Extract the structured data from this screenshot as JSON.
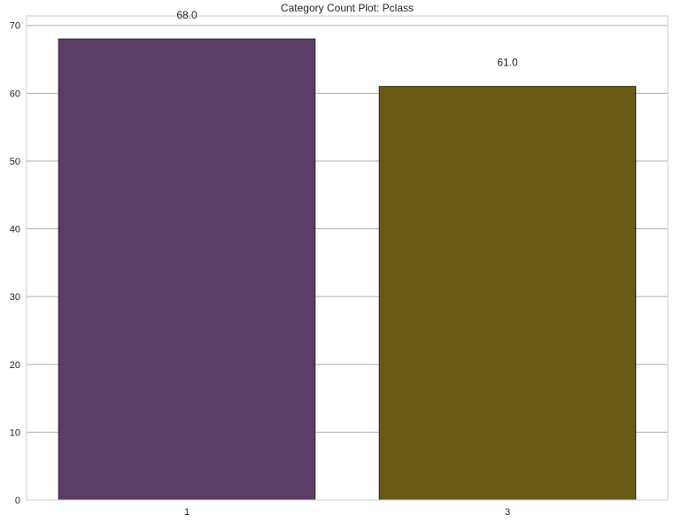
{
  "chart_data": {
    "type": "bar",
    "title": "Category Count Plot: Pclass",
    "xlabel": "",
    "ylabel": "",
    "categories": [
      "1",
      "3"
    ],
    "values": [
      68,
      61
    ],
    "data_labels": [
      "68.0",
      "61.0"
    ],
    "ylim": [
      0,
      71.4
    ],
    "yticks": [
      0,
      10,
      20,
      30,
      40,
      50,
      60,
      70
    ],
    "grid": "y-major",
    "legend": "none",
    "colors": [
      "#5b3d66",
      "#695a13"
    ],
    "edge_color": "#2a2a2a",
    "grid_color": "#b0b0b0",
    "axes_edge_color": "#cccccc"
  }
}
